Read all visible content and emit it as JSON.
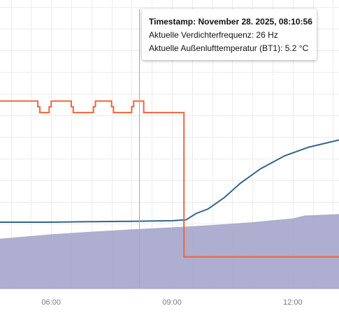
{
  "tooltip": {
    "timestamp": "Timestamp: November 28. 2025, 08:10:56",
    "line1": "Aktuelle Verdichterfrequenz: 26 Hz",
    "line2": "Aktuelle Außenlufttemperatur (BT1): 5.2 °C"
  },
  "chart_data": {
    "type": "line",
    "title": "",
    "xlabel": "",
    "ylabel": "",
    "grid": true,
    "x_ticks": [
      {
        "label": "06:00",
        "hour": 6
      },
      {
        "label": "09:00",
        "hour": 9
      },
      {
        "label": "12:00",
        "hour": 12
      }
    ],
    "x_range_hours": [
      4.73,
      13.15
    ],
    "y_range": [
      0,
      100
    ],
    "cursor_hour": 8.18,
    "colors": {
      "step": "#f0653a",
      "line": "#33648f",
      "area": "#a9aacd",
      "cursor": "#5bc8d4",
      "grid": "#ececec"
    },
    "series": [
      {
        "kind": "step",
        "points": [
          [
            4.73,
            65
          ],
          [
            5.67,
            65
          ],
          [
            5.67,
            63
          ],
          [
            5.72,
            63
          ],
          [
            5.72,
            61
          ],
          [
            5.95,
            61
          ],
          [
            5.95,
            63
          ],
          [
            6.0,
            63
          ],
          [
            6.0,
            65
          ],
          [
            6.5,
            65
          ],
          [
            6.5,
            63
          ],
          [
            6.55,
            63
          ],
          [
            6.55,
            61
          ],
          [
            7.05,
            61
          ],
          [
            7.05,
            63
          ],
          [
            7.1,
            63
          ],
          [
            7.1,
            65
          ],
          [
            7.5,
            65
          ],
          [
            7.5,
            63
          ],
          [
            7.55,
            63
          ],
          [
            7.55,
            61
          ],
          [
            8.0,
            61
          ],
          [
            8.0,
            63
          ],
          [
            8.05,
            63
          ],
          [
            8.05,
            65
          ],
          [
            8.3,
            65
          ],
          [
            8.3,
            61
          ],
          [
            9.3,
            61
          ],
          [
            9.3,
            11
          ],
          [
            13.15,
            11
          ]
        ]
      },
      {
        "kind": "line",
        "points": [
          [
            4.73,
            23
          ],
          [
            6.0,
            23
          ],
          [
            7.0,
            23.2
          ],
          [
            8.0,
            23.3
          ],
          [
            9.0,
            23.5
          ],
          [
            9.35,
            23.8
          ],
          [
            9.6,
            26
          ],
          [
            9.9,
            27.6
          ],
          [
            10.3,
            31.5
          ],
          [
            10.7,
            36.5
          ],
          [
            11.2,
            41.5
          ],
          [
            11.8,
            46
          ],
          [
            12.4,
            49
          ],
          [
            13.15,
            51.5
          ]
        ]
      },
      {
        "kind": "area",
        "points": [
          [
            4.73,
            17.3
          ],
          [
            6.0,
            18.8
          ],
          [
            7.0,
            19.7
          ],
          [
            8.0,
            20.5
          ],
          [
            9.0,
            21.2
          ],
          [
            10.0,
            22
          ],
          [
            11.0,
            23
          ],
          [
            12.0,
            24.3
          ],
          [
            12.3,
            25.3
          ],
          [
            13.15,
            25.8
          ]
        ]
      }
    ]
  }
}
